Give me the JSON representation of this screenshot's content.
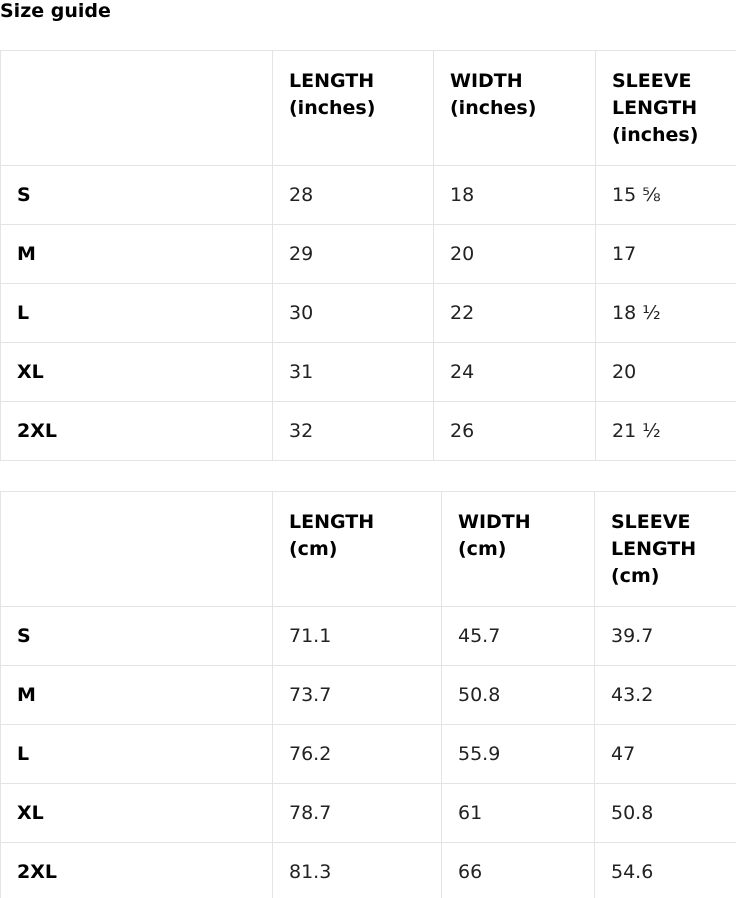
{
  "page": {
    "title": "Size guide"
  },
  "colors": {
    "border": "#e4e4e4",
    "heading_text": "#000000",
    "body_text": "#222222",
    "background": "#ffffff"
  },
  "tables": [
    {
      "name": "size-table-inches",
      "unit": "inches",
      "columns": [
        "",
        "LENGTH (inches)",
        "WIDTH (inches)",
        "SLEEVE LENGTH (inches)"
      ],
      "rows": [
        {
          "size": "S",
          "values": [
            "28",
            "18",
            "15 ⅝"
          ]
        },
        {
          "size": "M",
          "values": [
            "29",
            "20",
            "17"
          ]
        },
        {
          "size": "L",
          "values": [
            "30",
            "22",
            "18 ½"
          ]
        },
        {
          "size": "XL",
          "values": [
            "31",
            "24",
            "20"
          ]
        },
        {
          "size": "2XL",
          "values": [
            "32",
            "26",
            "21 ½"
          ]
        }
      ]
    },
    {
      "name": "size-table-cm",
      "unit": "cm",
      "columns": [
        "",
        "LENGTH (cm)",
        "WIDTH (cm)",
        "SLEEVE LENGTH (cm)"
      ],
      "rows": [
        {
          "size": "S",
          "values": [
            "71.1",
            "45.7",
            "39.7"
          ]
        },
        {
          "size": "M",
          "values": [
            "73.7",
            "50.8",
            "43.2"
          ]
        },
        {
          "size": "L",
          "values": [
            "76.2",
            "55.9",
            "47"
          ]
        },
        {
          "size": "XL",
          "values": [
            "78.7",
            "61",
            "50.8"
          ]
        },
        {
          "size": "2XL",
          "values": [
            "81.3",
            "66",
            "54.6"
          ]
        }
      ]
    }
  ]
}
